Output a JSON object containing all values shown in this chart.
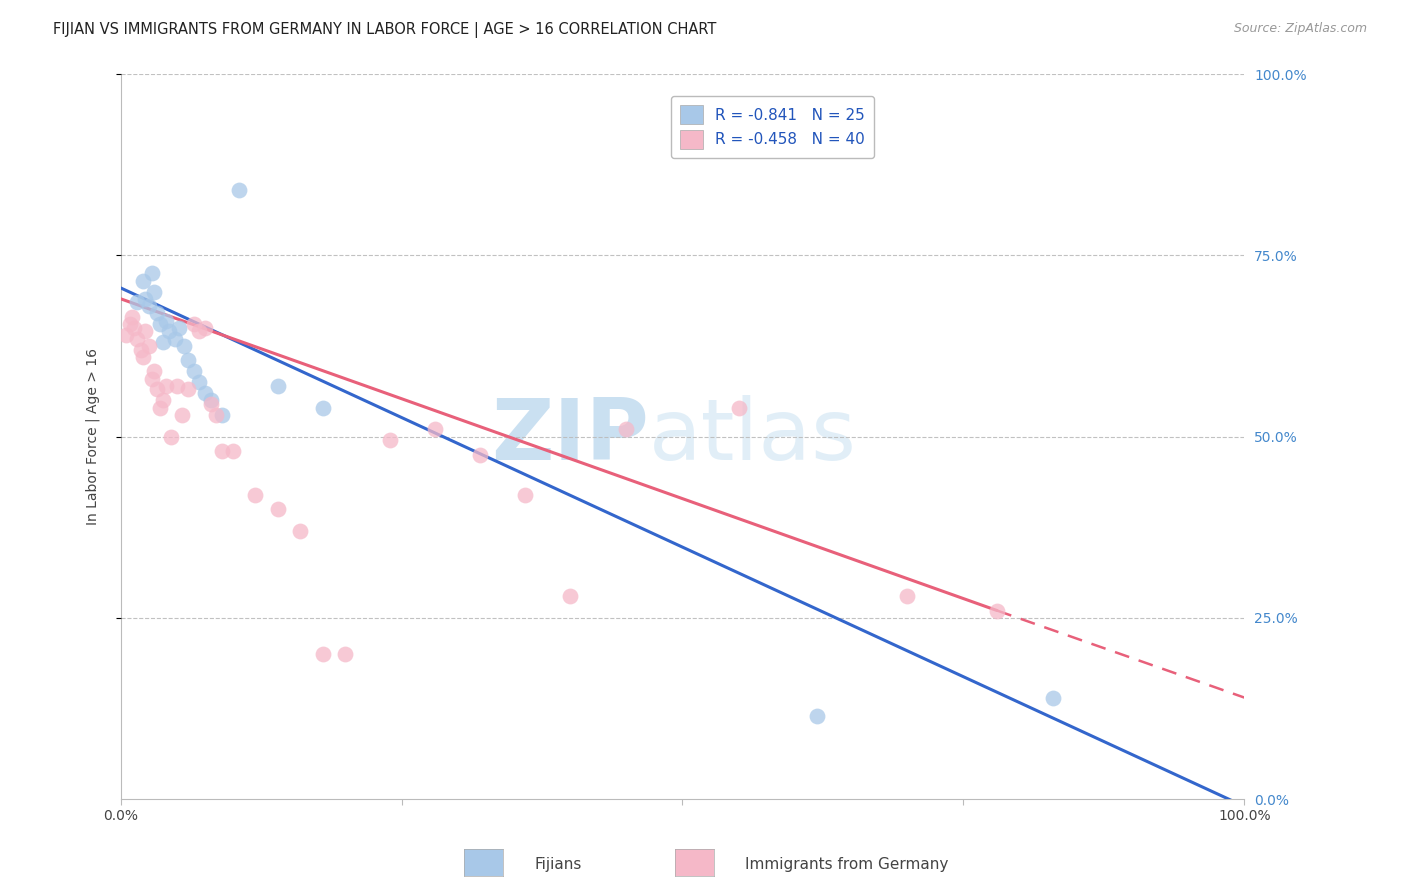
{
  "title": "FIJIAN VS IMMIGRANTS FROM GERMANY IN LABOR FORCE | AGE > 16 CORRELATION CHART",
  "source": "Source: ZipAtlas.com",
  "ylabel": "In Labor Force | Age > 16",
  "watermark_zip": "ZIP",
  "watermark_atlas": "atlas",
  "fijian_label": "R = -0.841   N = 25",
  "german_label": "R = -0.458   N = 40",
  "fijian_color": "#a8c8e8",
  "fijian_line_color": "#3366cc",
  "german_color": "#f5b8c8",
  "german_line_color": "#e8607a",
  "fijian_R": -0.841,
  "fijian_N": 25,
  "german_R": -0.458,
  "german_N": 40,
  "fijian_x": [
    1.5,
    2.0,
    2.2,
    2.5,
    2.8,
    3.0,
    3.2,
    3.5,
    3.8,
    4.0,
    4.3,
    4.8,
    5.2,
    5.6,
    6.0,
    6.5,
    7.0,
    7.5,
    8.0,
    9.0,
    10.5,
    14.0,
    18.0,
    62.0,
    83.0
  ],
  "fijian_y": [
    68.5,
    71.5,
    69.0,
    68.0,
    72.5,
    70.0,
    67.0,
    65.5,
    63.0,
    66.0,
    64.5,
    63.5,
    65.0,
    62.5,
    60.5,
    59.0,
    57.5,
    56.0,
    55.0,
    53.0,
    84.0,
    57.0,
    54.0,
    11.5,
    14.0
  ],
  "german_x": [
    0.5,
    0.8,
    1.0,
    1.2,
    1.5,
    1.8,
    2.0,
    2.2,
    2.5,
    2.8,
    3.0,
    3.2,
    3.5,
    3.8,
    4.0,
    4.5,
    5.0,
    5.5,
    6.0,
    6.5,
    7.0,
    7.5,
    8.0,
    8.5,
    9.0,
    10.0,
    12.0,
    14.0,
    16.0,
    18.0,
    20.0,
    24.0,
    28.0,
    32.0,
    36.0,
    40.0,
    45.0,
    55.0,
    70.0,
    78.0
  ],
  "german_y": [
    64.0,
    65.5,
    66.5,
    65.0,
    63.5,
    62.0,
    61.0,
    64.5,
    62.5,
    58.0,
    59.0,
    56.5,
    54.0,
    55.0,
    57.0,
    50.0,
    57.0,
    53.0,
    56.5,
    65.5,
    64.5,
    65.0,
    54.5,
    53.0,
    48.0,
    48.0,
    42.0,
    40.0,
    37.0,
    20.0,
    20.0,
    49.5,
    51.0,
    47.5,
    42.0,
    28.0,
    51.0,
    54.0,
    28.0,
    26.0
  ],
  "fijian_line_x0": 0,
  "fijian_line_y0": 70.5,
  "fijian_line_x1": 100,
  "fijian_line_y1": -1.0,
  "german_solid_x0": 0,
  "german_solid_y0": 69.0,
  "german_solid_x1": 78,
  "german_solid_y1": 26.0,
  "german_dash_x0": 78,
  "german_dash_y0": 26.0,
  "german_dash_x1": 100,
  "german_dash_y1": 14.0,
  "xlim": [
    0,
    100
  ],
  "ylim": [
    0,
    100
  ],
  "background": "#ffffff",
  "grid_color": "#bbbbbb",
  "right_tick_color": "#4488cc",
  "bottom_legend_fijian": "Fijians",
  "bottom_legend_german": "Immigrants from Germany"
}
